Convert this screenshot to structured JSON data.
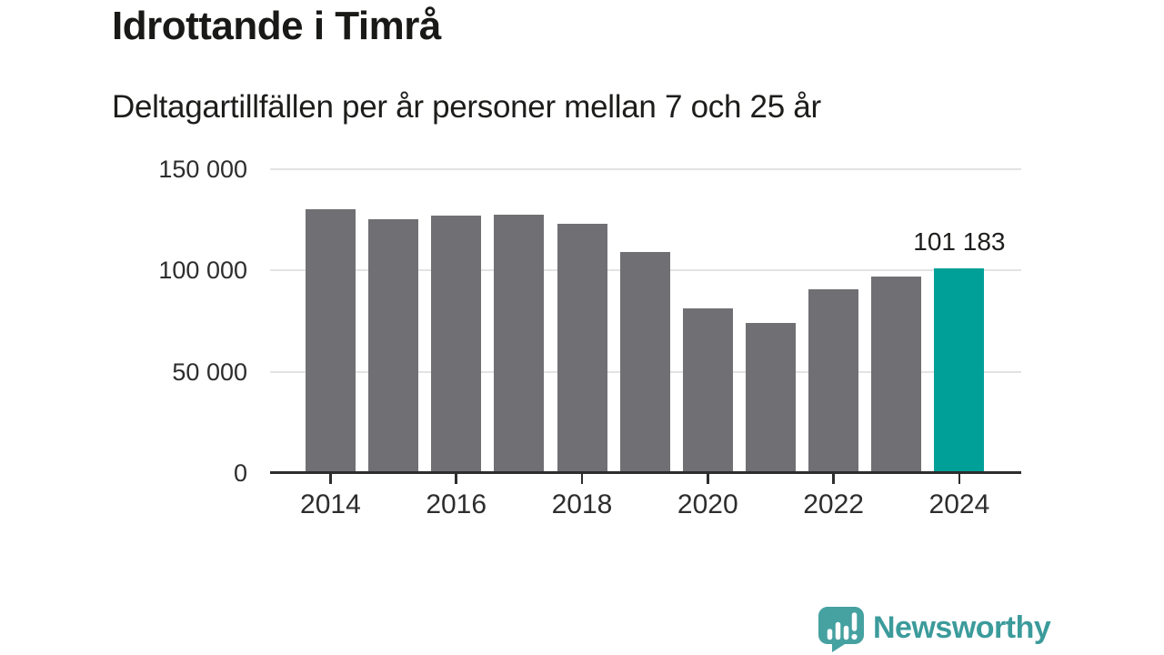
{
  "header": {
    "title": "Idrottande i Timrå",
    "subtitle": "Deltagartillfällen per år personer mellan 7 och 25 år"
  },
  "chart_data": {
    "type": "bar",
    "title": "Idrottande i Timrå",
    "subtitle": "Deltagartillfällen per år personer mellan 7 och 25 år",
    "categories": [
      2014,
      2015,
      2016,
      2017,
      2018,
      2019,
      2020,
      2021,
      2022,
      2023,
      2024
    ],
    "values": [
      130300,
      125300,
      127200,
      127700,
      123000,
      109100,
      81300,
      74300,
      90900,
      96800,
      101183
    ],
    "highlight_index": 10,
    "highlight_label": "101 183",
    "x_tick_labels": [
      "2014",
      "2016",
      "2018",
      "2020",
      "2022",
      "2024"
    ],
    "x_tick_years": [
      2014,
      2016,
      2018,
      2020,
      2022,
      2024
    ],
    "y_ticks": [
      {
        "value": 0,
        "label": "0"
      },
      {
        "value": 50000,
        "label": "50 000"
      },
      {
        "value": 100000,
        "label": "100 000"
      },
      {
        "value": 150000,
        "label": "150 000"
      }
    ],
    "ylim": [
      0,
      150000
    ],
    "grid": true,
    "legend": false,
    "colors": {
      "bar": "#707074",
      "highlight": "#00a098",
      "gridline": "#e3e3e3",
      "axis": "#2d2d2d",
      "text": "#1d1d1b"
    }
  },
  "footer": {
    "brand": "Newsworthy",
    "brand_color": "#3c9b9b",
    "logo_icon": "speech-bubble-bar-chart-icon"
  }
}
